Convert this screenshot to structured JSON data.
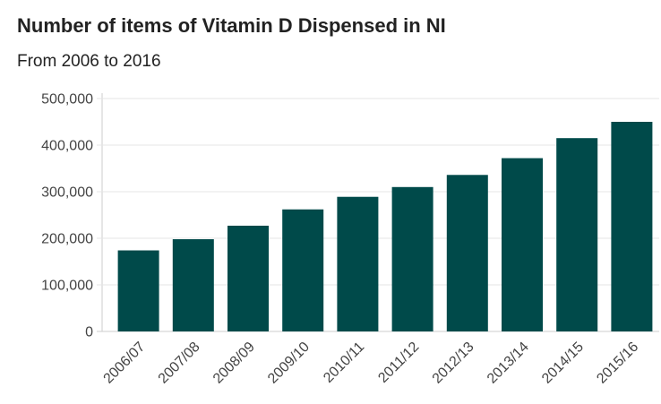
{
  "title": "Number of items of Vitamin D Dispensed in NI",
  "subtitle": "From 2006 to 2016",
  "chart_data": {
    "type": "bar",
    "title": "Number of items of Vitamin D Dispensed in NI",
    "subtitle": "From 2006 to 2016",
    "xlabel": "",
    "ylabel": "",
    "categories": [
      "2006/07",
      "2007/08",
      "2008/09",
      "2009/10",
      "2010/11",
      "2011/12",
      "2012/13",
      "2013/14",
      "2014/15",
      "2015/16"
    ],
    "values": [
      174000,
      198000,
      227000,
      262000,
      289000,
      310000,
      336000,
      372000,
      415000,
      450000
    ],
    "ylim": [
      0,
      500000
    ],
    "yticks": [
      0,
      100000,
      200000,
      300000,
      400000,
      500000
    ],
    "ytick_labels": [
      "0",
      "100,000",
      "200,000",
      "300,000",
      "400,000",
      "500,000"
    ],
    "grid": true,
    "colors": {
      "bar": "#004a4a",
      "grid": "#e4e4e4",
      "axis": "#cccccc"
    }
  }
}
